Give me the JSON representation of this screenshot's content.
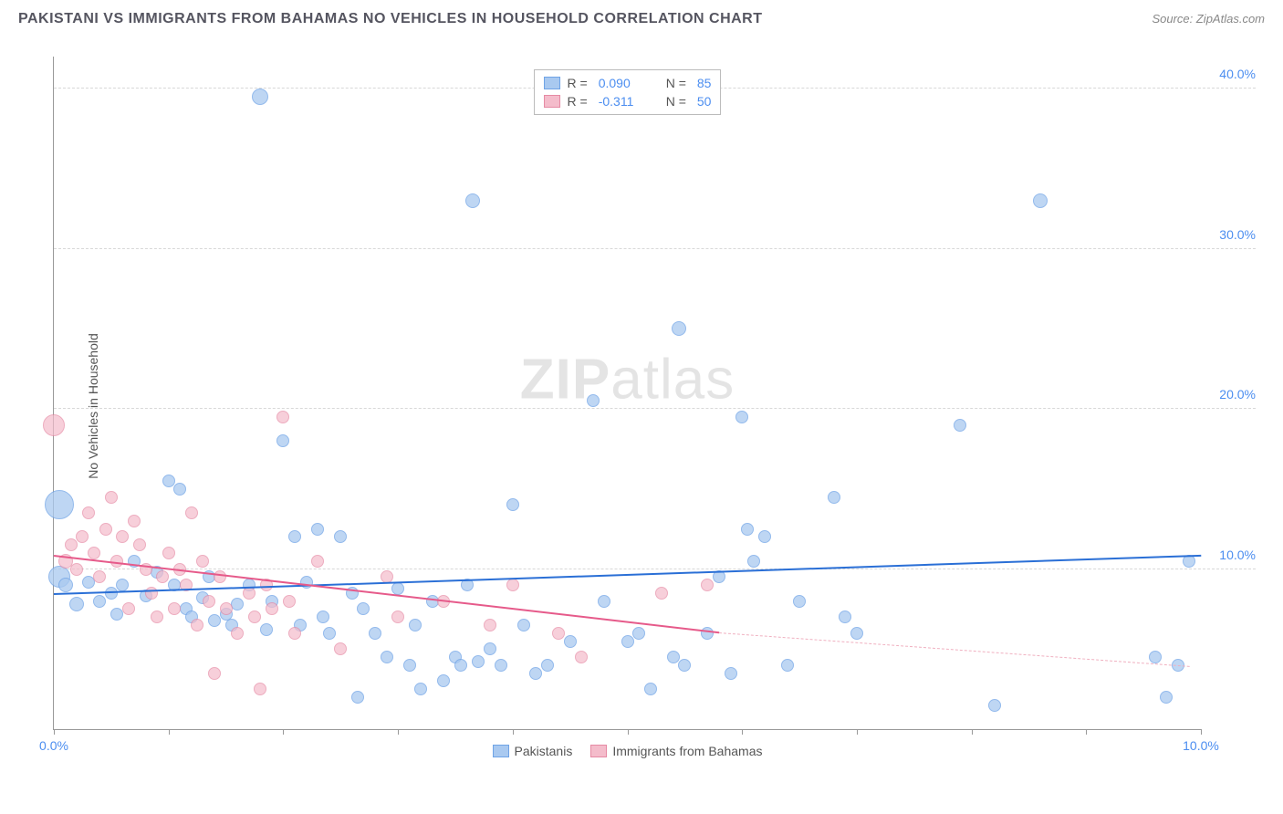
{
  "header": {
    "title": "PAKISTANI VS IMMIGRANTS FROM BAHAMAS NO VEHICLES IN HOUSEHOLD CORRELATION CHART",
    "source_label": "Source: ZipAtlas.com"
  },
  "chart": {
    "type": "scatter",
    "y_label": "No Vehicles in Household",
    "background_color": "#ffffff",
    "grid_color": "#d8d8d8",
    "axis_color": "#999999",
    "tick_label_color": "#4c8ef0",
    "tick_fontsize": 14,
    "label_fontsize": 14,
    "title_fontsize": 16,
    "title_color": "#555560",
    "xlim": [
      0,
      10
    ],
    "ylim": [
      0,
      42
    ],
    "x_ticks": [
      0,
      1,
      2,
      3,
      4,
      5,
      6,
      7,
      8,
      9,
      10
    ],
    "x_tick_labels": [
      "0.0%",
      "",
      "",
      "",
      "",
      "",
      "",
      "",
      "",
      "",
      "10.0%"
    ],
    "y_ticks": [
      10,
      20,
      30,
      40
    ],
    "y_tick_labels": [
      "10.0%",
      "20.0%",
      "30.0%",
      "40.0%"
    ],
    "watermark": {
      "left": "ZIP",
      "right": "atlas",
      "color": "#cfcfcf",
      "fontsize": 62
    },
    "series": [
      {
        "name": "Pakistanis",
        "color_fill": "#a9c9f0",
        "color_stroke": "#6fa3e6",
        "marker": "circle",
        "marker_opacity": 0.75,
        "legend_R": "0.090",
        "legend_N": "85",
        "trend": {
          "x1": 0,
          "y1": 8.4,
          "x2": 10,
          "y2": 10.8,
          "color": "#2a6fd6",
          "width": 2.5
        },
        "points": [
          {
            "x": 0.05,
            "y": 14.0,
            "r": 16
          },
          {
            "x": 0.05,
            "y": 9.5,
            "r": 12
          },
          {
            "x": 0.1,
            "y": 9.0,
            "r": 8
          },
          {
            "x": 0.2,
            "y": 7.8,
            "r": 8
          },
          {
            "x": 0.3,
            "y": 9.2,
            "r": 7
          },
          {
            "x": 0.4,
            "y": 8.0,
            "r": 7
          },
          {
            "x": 0.5,
            "y": 8.5,
            "r": 7
          },
          {
            "x": 0.55,
            "y": 7.2,
            "r": 7
          },
          {
            "x": 0.6,
            "y": 9.0,
            "r": 7
          },
          {
            "x": 0.7,
            "y": 10.5,
            "r": 7
          },
          {
            "x": 0.8,
            "y": 8.3,
            "r": 7
          },
          {
            "x": 0.9,
            "y": 9.8,
            "r": 7
          },
          {
            "x": 1.0,
            "y": 15.5,
            "r": 7
          },
          {
            "x": 1.05,
            "y": 9.0,
            "r": 7
          },
          {
            "x": 1.1,
            "y": 15.0,
            "r": 7
          },
          {
            "x": 1.15,
            "y": 7.5,
            "r": 7
          },
          {
            "x": 1.2,
            "y": 7.0,
            "r": 7
          },
          {
            "x": 1.3,
            "y": 8.2,
            "r": 7
          },
          {
            "x": 1.35,
            "y": 9.5,
            "r": 7
          },
          {
            "x": 1.4,
            "y": 6.8,
            "r": 7
          },
          {
            "x": 1.5,
            "y": 7.2,
            "r": 7
          },
          {
            "x": 1.55,
            "y": 6.5,
            "r": 7
          },
          {
            "x": 1.6,
            "y": 7.8,
            "r": 7
          },
          {
            "x": 1.7,
            "y": 9.0,
            "r": 7
          },
          {
            "x": 1.8,
            "y": 39.5,
            "r": 9
          },
          {
            "x": 1.85,
            "y": 6.2,
            "r": 7
          },
          {
            "x": 1.9,
            "y": 8.0,
            "r": 7
          },
          {
            "x": 2.0,
            "y": 18.0,
            "r": 7
          },
          {
            "x": 2.1,
            "y": 12.0,
            "r": 7
          },
          {
            "x": 2.15,
            "y": 6.5,
            "r": 7
          },
          {
            "x": 2.2,
            "y": 9.2,
            "r": 7
          },
          {
            "x": 2.3,
            "y": 12.5,
            "r": 7
          },
          {
            "x": 2.35,
            "y": 7.0,
            "r": 7
          },
          {
            "x": 2.4,
            "y": 6.0,
            "r": 7
          },
          {
            "x": 2.5,
            "y": 12.0,
            "r": 7
          },
          {
            "x": 2.6,
            "y": 8.5,
            "r": 7
          },
          {
            "x": 2.65,
            "y": 2.0,
            "r": 7
          },
          {
            "x": 2.7,
            "y": 7.5,
            "r": 7
          },
          {
            "x": 2.8,
            "y": 6.0,
            "r": 7
          },
          {
            "x": 2.9,
            "y": 4.5,
            "r": 7
          },
          {
            "x": 3.0,
            "y": 8.8,
            "r": 7
          },
          {
            "x": 3.1,
            "y": 4.0,
            "r": 7
          },
          {
            "x": 3.15,
            "y": 6.5,
            "r": 7
          },
          {
            "x": 3.2,
            "y": 2.5,
            "r": 7
          },
          {
            "x": 3.3,
            "y": 8.0,
            "r": 7
          },
          {
            "x": 3.4,
            "y": 3.0,
            "r": 7
          },
          {
            "x": 3.5,
            "y": 4.5,
            "r": 7
          },
          {
            "x": 3.55,
            "y": 4.0,
            "r": 7
          },
          {
            "x": 3.6,
            "y": 9.0,
            "r": 7
          },
          {
            "x": 3.65,
            "y": 33.0,
            "r": 8
          },
          {
            "x": 3.7,
            "y": 4.2,
            "r": 7
          },
          {
            "x": 3.8,
            "y": 5.0,
            "r": 7
          },
          {
            "x": 3.9,
            "y": 4.0,
            "r": 7
          },
          {
            "x": 4.0,
            "y": 14.0,
            "r": 7
          },
          {
            "x": 4.1,
            "y": 6.5,
            "r": 7
          },
          {
            "x": 4.2,
            "y": 3.5,
            "r": 7
          },
          {
            "x": 4.3,
            "y": 4.0,
            "r": 7
          },
          {
            "x": 4.5,
            "y": 5.5,
            "r": 7
          },
          {
            "x": 4.7,
            "y": 20.5,
            "r": 7
          },
          {
            "x": 4.8,
            "y": 8.0,
            "r": 7
          },
          {
            "x": 5.0,
            "y": 5.5,
            "r": 7
          },
          {
            "x": 5.1,
            "y": 6.0,
            "r": 7
          },
          {
            "x": 5.2,
            "y": 2.5,
            "r": 7
          },
          {
            "x": 5.4,
            "y": 4.5,
            "r": 7
          },
          {
            "x": 5.45,
            "y": 25.0,
            "r": 8
          },
          {
            "x": 5.5,
            "y": 4.0,
            "r": 7
          },
          {
            "x": 5.7,
            "y": 6.0,
            "r": 7
          },
          {
            "x": 5.8,
            "y": 9.5,
            "r": 7
          },
          {
            "x": 5.9,
            "y": 3.5,
            "r": 7
          },
          {
            "x": 6.0,
            "y": 19.5,
            "r": 7
          },
          {
            "x": 6.05,
            "y": 12.5,
            "r": 7
          },
          {
            "x": 6.1,
            "y": 10.5,
            "r": 7
          },
          {
            "x": 6.2,
            "y": 12.0,
            "r": 7
          },
          {
            "x": 6.4,
            "y": 4.0,
            "r": 7
          },
          {
            "x": 6.5,
            "y": 8.0,
            "r": 7
          },
          {
            "x": 6.8,
            "y": 14.5,
            "r": 7
          },
          {
            "x": 6.9,
            "y": 7.0,
            "r": 7
          },
          {
            "x": 7.0,
            "y": 6.0,
            "r": 7
          },
          {
            "x": 7.9,
            "y": 19.0,
            "r": 7
          },
          {
            "x": 8.2,
            "y": 1.5,
            "r": 7
          },
          {
            "x": 8.6,
            "y": 33.0,
            "r": 8
          },
          {
            "x": 9.6,
            "y": 4.5,
            "r": 7
          },
          {
            "x": 9.7,
            "y": 2.0,
            "r": 7
          },
          {
            "x": 9.8,
            "y": 4.0,
            "r": 7
          },
          {
            "x": 9.9,
            "y": 10.5,
            "r": 7
          }
        ]
      },
      {
        "name": "Immigrants from Bahamas",
        "color_fill": "#f4bccb",
        "color_stroke": "#e68aa4",
        "marker": "circle",
        "marker_opacity": 0.7,
        "legend_R": "-0.311",
        "legend_N": "50",
        "trend": {
          "x1": 0,
          "y1": 10.8,
          "x2": 5.8,
          "y2": 6.0,
          "color": "#e65a8a",
          "width": 2.5
        },
        "trend_extrapolate": {
          "x1": 5.8,
          "y1": 6.0,
          "x2": 9.9,
          "y2": 3.9,
          "color": "#f0b0c0",
          "width": 1.5
        },
        "points": [
          {
            "x": 0.0,
            "y": 19.0,
            "r": 12
          },
          {
            "x": 0.1,
            "y": 10.5,
            "r": 8
          },
          {
            "x": 0.15,
            "y": 11.5,
            "r": 7
          },
          {
            "x": 0.2,
            "y": 10.0,
            "r": 7
          },
          {
            "x": 0.25,
            "y": 12.0,
            "r": 7
          },
          {
            "x": 0.3,
            "y": 13.5,
            "r": 7
          },
          {
            "x": 0.35,
            "y": 11.0,
            "r": 7
          },
          {
            "x": 0.4,
            "y": 9.5,
            "r": 7
          },
          {
            "x": 0.45,
            "y": 12.5,
            "r": 7
          },
          {
            "x": 0.5,
            "y": 14.5,
            "r": 7
          },
          {
            "x": 0.55,
            "y": 10.5,
            "r": 7
          },
          {
            "x": 0.6,
            "y": 12.0,
            "r": 7
          },
          {
            "x": 0.65,
            "y": 7.5,
            "r": 7
          },
          {
            "x": 0.7,
            "y": 13.0,
            "r": 7
          },
          {
            "x": 0.75,
            "y": 11.5,
            "r": 7
          },
          {
            "x": 0.8,
            "y": 10.0,
            "r": 7
          },
          {
            "x": 0.85,
            "y": 8.5,
            "r": 7
          },
          {
            "x": 0.9,
            "y": 7.0,
            "r": 7
          },
          {
            "x": 0.95,
            "y": 9.5,
            "r": 7
          },
          {
            "x": 1.0,
            "y": 11.0,
            "r": 7
          },
          {
            "x": 1.05,
            "y": 7.5,
            "r": 7
          },
          {
            "x": 1.1,
            "y": 10.0,
            "r": 7
          },
          {
            "x": 1.15,
            "y": 9.0,
            "r": 7
          },
          {
            "x": 1.2,
            "y": 13.5,
            "r": 7
          },
          {
            "x": 1.25,
            "y": 6.5,
            "r": 7
          },
          {
            "x": 1.3,
            "y": 10.5,
            "r": 7
          },
          {
            "x": 1.35,
            "y": 8.0,
            "r": 7
          },
          {
            "x": 1.4,
            "y": 3.5,
            "r": 7
          },
          {
            "x": 1.45,
            "y": 9.5,
            "r": 7
          },
          {
            "x": 1.5,
            "y": 7.5,
            "r": 7
          },
          {
            "x": 1.6,
            "y": 6.0,
            "r": 7
          },
          {
            "x": 1.7,
            "y": 8.5,
            "r": 7
          },
          {
            "x": 1.75,
            "y": 7.0,
            "r": 7
          },
          {
            "x": 1.8,
            "y": 2.5,
            "r": 7
          },
          {
            "x": 1.85,
            "y": 9.0,
            "r": 7
          },
          {
            "x": 1.9,
            "y": 7.5,
            "r": 7
          },
          {
            "x": 2.0,
            "y": 19.5,
            "r": 7
          },
          {
            "x": 2.05,
            "y": 8.0,
            "r": 7
          },
          {
            "x": 2.1,
            "y": 6.0,
            "r": 7
          },
          {
            "x": 2.3,
            "y": 10.5,
            "r": 7
          },
          {
            "x": 2.5,
            "y": 5.0,
            "r": 7
          },
          {
            "x": 2.9,
            "y": 9.5,
            "r": 7
          },
          {
            "x": 3.0,
            "y": 7.0,
            "r": 7
          },
          {
            "x": 3.4,
            "y": 8.0,
            "r": 7
          },
          {
            "x": 3.8,
            "y": 6.5,
            "r": 7
          },
          {
            "x": 4.0,
            "y": 9.0,
            "r": 7
          },
          {
            "x": 4.4,
            "y": 6.0,
            "r": 7
          },
          {
            "x": 4.6,
            "y": 4.5,
            "r": 7
          },
          {
            "x": 5.3,
            "y": 8.5,
            "r": 7
          },
          {
            "x": 5.7,
            "y": 9.0,
            "r": 7
          }
        ]
      }
    ],
    "legend_bottom": [
      {
        "swatch_fill": "#a9c9f0",
        "swatch_stroke": "#6fa3e6",
        "label": "Pakistanis"
      },
      {
        "swatch_fill": "#f4bccb",
        "swatch_stroke": "#e68aa4",
        "label": "Immigrants from Bahamas"
      }
    ]
  }
}
